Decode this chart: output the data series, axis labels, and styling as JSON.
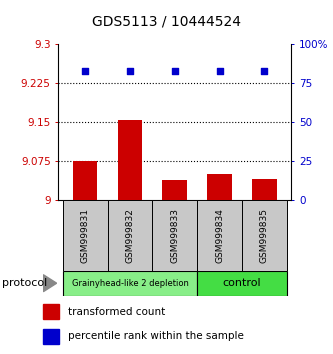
{
  "title": "GDS5113 / 10444524",
  "samples": [
    "GSM999831",
    "GSM999832",
    "GSM999833",
    "GSM999834",
    "GSM999835"
  ],
  "bar_values": [
    9.075,
    9.155,
    9.038,
    9.05,
    9.04
  ],
  "percentile_values": [
    83,
    83,
    83,
    83,
    83
  ],
  "ylim_left": [
    9.0,
    9.3
  ],
  "ylim_right": [
    0,
    100
  ],
  "yticks_left": [
    9.0,
    9.075,
    9.15,
    9.225,
    9.3
  ],
  "ytick_labels_left": [
    "9",
    "9.075",
    "9.15",
    "9.225",
    "9.3"
  ],
  "yticks_right": [
    0,
    25,
    50,
    75,
    100
  ],
  "ytick_labels_right": [
    "0",
    "25",
    "50",
    "75",
    "100%"
  ],
  "hlines": [
    9.075,
    9.15,
    9.225
  ],
  "bar_color": "#cc0000",
  "scatter_color": "#0000cc",
  "bar_width": 0.55,
  "groups": [
    {
      "label": "Grainyhead-like 2 depletion",
      "samples_idx": [
        0,
        2
      ],
      "color": "#88ee88"
    },
    {
      "label": "control",
      "samples_idx": [
        3,
        4
      ],
      "color": "#44dd44"
    }
  ],
  "protocol_label": "protocol",
  "legend_bar_label": "transformed count",
  "legend_scatter_label": "percentile rank within the sample",
  "sample_box_color": "#c8c8c8",
  "title_fontsize": 10,
  "tick_fontsize": 7.5,
  "sample_fontsize": 6.5,
  "group_fontsize_small": 6,
  "group_fontsize_large": 8,
  "legend_fontsize": 7.5
}
